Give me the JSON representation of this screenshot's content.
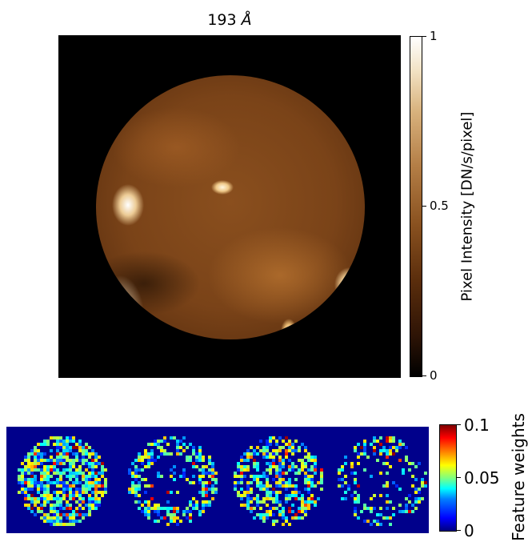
{
  "image": {
    "title_wavelength": "193",
    "title_unit": "Å",
    "subject": "full-disk solar image",
    "colormap": "sdoaia193"
  },
  "intensity_colorbar": {
    "label": "Pixel Intensity [DN/s/pixel]",
    "ticks": [
      "0",
      "0.5",
      "1"
    ]
  },
  "weights_colorbar": {
    "label": "Feature weights",
    "ticks": [
      "0",
      "0.05",
      "0.1"
    ]
  },
  "weights_panel": {
    "count": 4,
    "colormap": "jet",
    "background": "#00008b"
  }
}
